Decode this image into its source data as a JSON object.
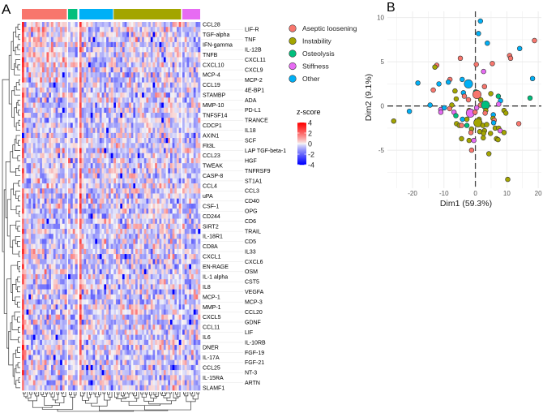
{
  "panel_labels": {
    "a": "A",
    "b": "B"
  },
  "colors": {
    "aseptic": "#F8766D",
    "instability": "#A3A500",
    "osteolysis": "#00BF7D",
    "stiffness": "#E76BF3",
    "other": "#00B0F6",
    "zhigh": "#FF0000",
    "zmid": "#F7F7F7",
    "zlow": "#0000FF"
  },
  "chart_data": [
    {
      "type": "heatmap",
      "title": "",
      "row_labels": [
        "CCL28",
        "LIF-R",
        "TGF-alpha",
        "TNF",
        "IFN-gamma",
        "IL-12B",
        "TNFB",
        "CXCL11",
        "CXCL10",
        "CXCL9",
        "MCP-4",
        "MCP-2",
        "CCL19",
        "4E-BP1",
        "STAMBP",
        "ADA",
        "MMP-10",
        "PD-L1",
        "TNFSF14",
        "TRANCE",
        "CDCP1",
        "IL18",
        "AXIN1",
        "SCF",
        "Flt3L",
        "LAP TGF-beta-1",
        "CCL23",
        "HGF",
        "TWEAK",
        "TNFRSF9",
        "CASP-8",
        "ST1A1",
        "CCL4",
        "CCL3",
        "uPA",
        "CD40",
        "CSF-1",
        "OPG",
        "CD244",
        "CD6",
        "SIRT2",
        "TRAIL",
        "IL-18R1",
        "CD5",
        "CD8A",
        "IL33",
        "CXCL1",
        "CXCL6",
        "EN-RAGE",
        "OSM",
        "IL-1 alpha",
        "CST5",
        "IL8",
        "VEGFA",
        "MCP-1",
        "MCP-3",
        "MMP-1",
        "CCL20",
        "CXCL5",
        "GDNF",
        "CCL11",
        "LIF",
        "IL6",
        "IL-10RB",
        "DNER",
        "FGF-19",
        "IL-17A",
        "FGF-21",
        "CCL25",
        "NT-3",
        "IL-15RA",
        "ARTN",
        "SLAMF1"
      ],
      "column_groups": [
        {
          "name": "Aseptic loosening",
          "key": "aseptic",
          "n_columns": 20
        },
        {
          "name": "Osteolysis",
          "key": "osteolysis",
          "n_columns": 4
        },
        {
          "name": "Other",
          "key": "other",
          "n_columns": 15
        },
        {
          "name": "Instability",
          "key": "instability",
          "n_columns": 31
        },
        {
          "name": "Stiffness",
          "key": "stiffness",
          "n_columns": 8
        }
      ],
      "legend": {
        "groups": [
          {
            "label": "Aseptic loosening",
            "key": "aseptic"
          },
          {
            "label": "Instability",
            "key": "instability"
          },
          {
            "label": "Osteolysis",
            "key": "osteolysis"
          },
          {
            "label": "Stiffness",
            "key": "stiffness"
          },
          {
            "label": "Other",
            "key": "other"
          }
        ],
        "colorbar_title": "z-score",
        "colorbar_ticks": [
          "4",
          "2",
          "0",
          "-2",
          "-4"
        ],
        "range": [
          -4,
          4
        ]
      }
    },
    {
      "type": "scatter",
      "xlabel": "Dim1 (59.3%)",
      "ylabel": "Dim2 (9.1%)",
      "xlim": [
        -28,
        21
      ],
      "ylim": [
        -9.3,
        10.7
      ],
      "xticks": [
        -20,
        -10,
        0,
        10,
        20
      ],
      "yticks": [
        10,
        5,
        0,
        -5
      ],
      "xtick_labels": [
        "-20",
        "-10",
        "0",
        "10",
        "20"
      ],
      "ytick_labels": [
        "10",
        "5",
        "0",
        "-5"
      ],
      "grid": true,
      "reference_lines": {
        "x": 0,
        "y": 0,
        "style": "dashed"
      },
      "points": [
        {
          "x": 1.6,
          "y": 9.6,
          "g": "other"
        },
        {
          "x": 1.0,
          "y": 8.2,
          "g": "other"
        },
        {
          "x": 3.8,
          "y": 7.1,
          "g": "other"
        },
        {
          "x": 14.1,
          "y": 6.5,
          "g": "other"
        },
        {
          "x": 18.8,
          "y": 7.4,
          "g": "aseptic"
        },
        {
          "x": 10.9,
          "y": 5.7,
          "g": "aseptic"
        },
        {
          "x": 11.2,
          "y": 5.4,
          "g": "aseptic"
        },
        {
          "x": -4.8,
          "y": 5.4,
          "g": "aseptic"
        },
        {
          "x": 0.3,
          "y": 4.7,
          "g": "aseptic"
        },
        {
          "x": 5.4,
          "y": 4.8,
          "g": "aseptic"
        },
        {
          "x": -12.3,
          "y": 4.6,
          "g": "aseptic"
        },
        {
          "x": -12.9,
          "y": 4.4,
          "g": "instability"
        },
        {
          "x": 2.6,
          "y": 3.9,
          "g": "stiffness"
        },
        {
          "x": 18.2,
          "y": 3.1,
          "g": "other"
        },
        {
          "x": -18.3,
          "y": 2.6,
          "g": "other"
        },
        {
          "x": -11.6,
          "y": 2.5,
          "g": "other"
        },
        {
          "x": -8.1,
          "y": 3.0,
          "g": "aseptic"
        },
        {
          "x": -8.6,
          "y": 2.7,
          "g": "other"
        },
        {
          "x": -4.2,
          "y": 3.0,
          "g": "other"
        },
        {
          "x": -2.2,
          "y": 2.5,
          "g": "other",
          "big": true
        },
        {
          "x": 2.9,
          "y": 2.2,
          "g": "aseptic"
        },
        {
          "x": -13.4,
          "y": 1.8,
          "g": "aseptic"
        },
        {
          "x": -6.5,
          "y": 1.7,
          "g": "instability"
        },
        {
          "x": -3.8,
          "y": 1.5,
          "g": "other"
        },
        {
          "x": 0.1,
          "y": 1.6,
          "g": "osteolysis"
        },
        {
          "x": 0.5,
          "y": 1.3,
          "g": "aseptic",
          "big": true
        },
        {
          "x": 4.9,
          "y": 1.4,
          "g": "instability"
        },
        {
          "x": 7.3,
          "y": 1.1,
          "g": "osteolysis"
        },
        {
          "x": -3.5,
          "y": 1.1,
          "g": "aseptic"
        },
        {
          "x": -6.1,
          "y": 0.8,
          "g": "instability"
        },
        {
          "x": -2.2,
          "y": 0.7,
          "g": "aseptic"
        },
        {
          "x": 1.7,
          "y": 0.7,
          "g": "instability"
        },
        {
          "x": 17.4,
          "y": 0.9,
          "g": "osteolysis"
        },
        {
          "x": 8.0,
          "y": 0.6,
          "g": "other"
        },
        {
          "x": 7.4,
          "y": 0.2,
          "g": "stiffness"
        },
        {
          "x": -14.4,
          "y": 0.1,
          "g": "other"
        },
        {
          "x": -7.5,
          "y": 0.1,
          "g": "instability"
        },
        {
          "x": 1.6,
          "y": 0.1,
          "g": "aseptic"
        },
        {
          "x": 3.2,
          "y": 0.1,
          "g": "osteolysis",
          "big": true
        },
        {
          "x": -21,
          "y": -0.6,
          "g": "other"
        },
        {
          "x": -11,
          "y": -0.4,
          "g": "stiffness"
        },
        {
          "x": -11,
          "y": -0.7,
          "g": "stiffness"
        },
        {
          "x": -9.9,
          "y": -0.2,
          "g": "other"
        },
        {
          "x": -8.2,
          "y": -0.3,
          "g": "aseptic"
        },
        {
          "x": -6.8,
          "y": -0.7,
          "g": "stiffness"
        },
        {
          "x": -6.2,
          "y": -1.1,
          "g": "osteolysis"
        },
        {
          "x": -2.0,
          "y": -0.5,
          "g": "instability"
        },
        {
          "x": -1.6,
          "y": -0.8,
          "g": "stiffness",
          "big": true
        },
        {
          "x": 0.4,
          "y": -0.2,
          "g": "stiffness"
        },
        {
          "x": -0.1,
          "y": -0.7,
          "g": "aseptic"
        },
        {
          "x": 3.3,
          "y": -0.5,
          "g": "instability"
        },
        {
          "x": 3.1,
          "y": -0.8,
          "g": "aseptic"
        },
        {
          "x": 9.1,
          "y": -0.5,
          "g": "instability"
        },
        {
          "x": 9.7,
          "y": -0.8,
          "g": "instability"
        },
        {
          "x": 5.7,
          "y": -1.0,
          "g": "other"
        },
        {
          "x": 5.6,
          "y": -1.4,
          "g": "instability"
        },
        {
          "x": -26,
          "y": -1.7,
          "g": "instability"
        },
        {
          "x": -4.1,
          "y": -1.5,
          "g": "other"
        },
        {
          "x": -2.7,
          "y": -1.5,
          "g": "instability"
        },
        {
          "x": 1.2,
          "y": -1.5,
          "g": "instability"
        },
        {
          "x": 6.0,
          "y": -1.6,
          "g": "aseptic"
        },
        {
          "x": 0.8,
          "y": -1.9,
          "g": "instability",
          "big": true
        },
        {
          "x": 5.8,
          "y": -1.9,
          "g": "other"
        },
        {
          "x": -6.0,
          "y": -2.0,
          "g": "instability"
        },
        {
          "x": -5.1,
          "y": -2.2,
          "g": "instability"
        },
        {
          "x": -4.4,
          "y": -2.2,
          "g": "aseptic"
        },
        {
          "x": -2.7,
          "y": -2.2,
          "g": "osteolysis"
        },
        {
          "x": -1.2,
          "y": -2.6,
          "g": "instability"
        },
        {
          "x": -1.4,
          "y": -3.0,
          "g": "aseptic"
        },
        {
          "x": 2.4,
          "y": -2.2,
          "g": "instability"
        },
        {
          "x": 3.6,
          "y": -2.1,
          "g": "instability"
        },
        {
          "x": 1.4,
          "y": -2.9,
          "g": "instability"
        },
        {
          "x": 2.9,
          "y": -2.8,
          "g": "instability"
        },
        {
          "x": 2.6,
          "y": -3.1,
          "g": "instability"
        },
        {
          "x": 4.8,
          "y": -3.1,
          "g": "instability"
        },
        {
          "x": 6.3,
          "y": -2.5,
          "g": "instability"
        },
        {
          "x": 7.4,
          "y": -2.5,
          "g": "instability"
        },
        {
          "x": 7.9,
          "y": -2.8,
          "g": "stiffness"
        },
        {
          "x": 9.1,
          "y": -3.0,
          "g": "instability"
        },
        {
          "x": 13.8,
          "y": -2.0,
          "g": "aseptic"
        },
        {
          "x": 2.5,
          "y": -3.6,
          "g": "instability"
        },
        {
          "x": 6.7,
          "y": -3.7,
          "g": "instability"
        },
        {
          "x": 7.2,
          "y": -3.8,
          "g": "instability"
        },
        {
          "x": -4.4,
          "y": -3.7,
          "g": "instability"
        },
        {
          "x": -2.0,
          "y": -3.9,
          "g": "instability"
        },
        {
          "x": -0.5,
          "y": -3.9,
          "g": "stiffness"
        },
        {
          "x": -1.2,
          "y": -5.0,
          "g": "aseptic"
        },
        {
          "x": 4.3,
          "y": -5.4,
          "g": "instability"
        },
        {
          "x": 10.3,
          "y": -8.3,
          "g": "instability"
        }
      ]
    }
  ]
}
